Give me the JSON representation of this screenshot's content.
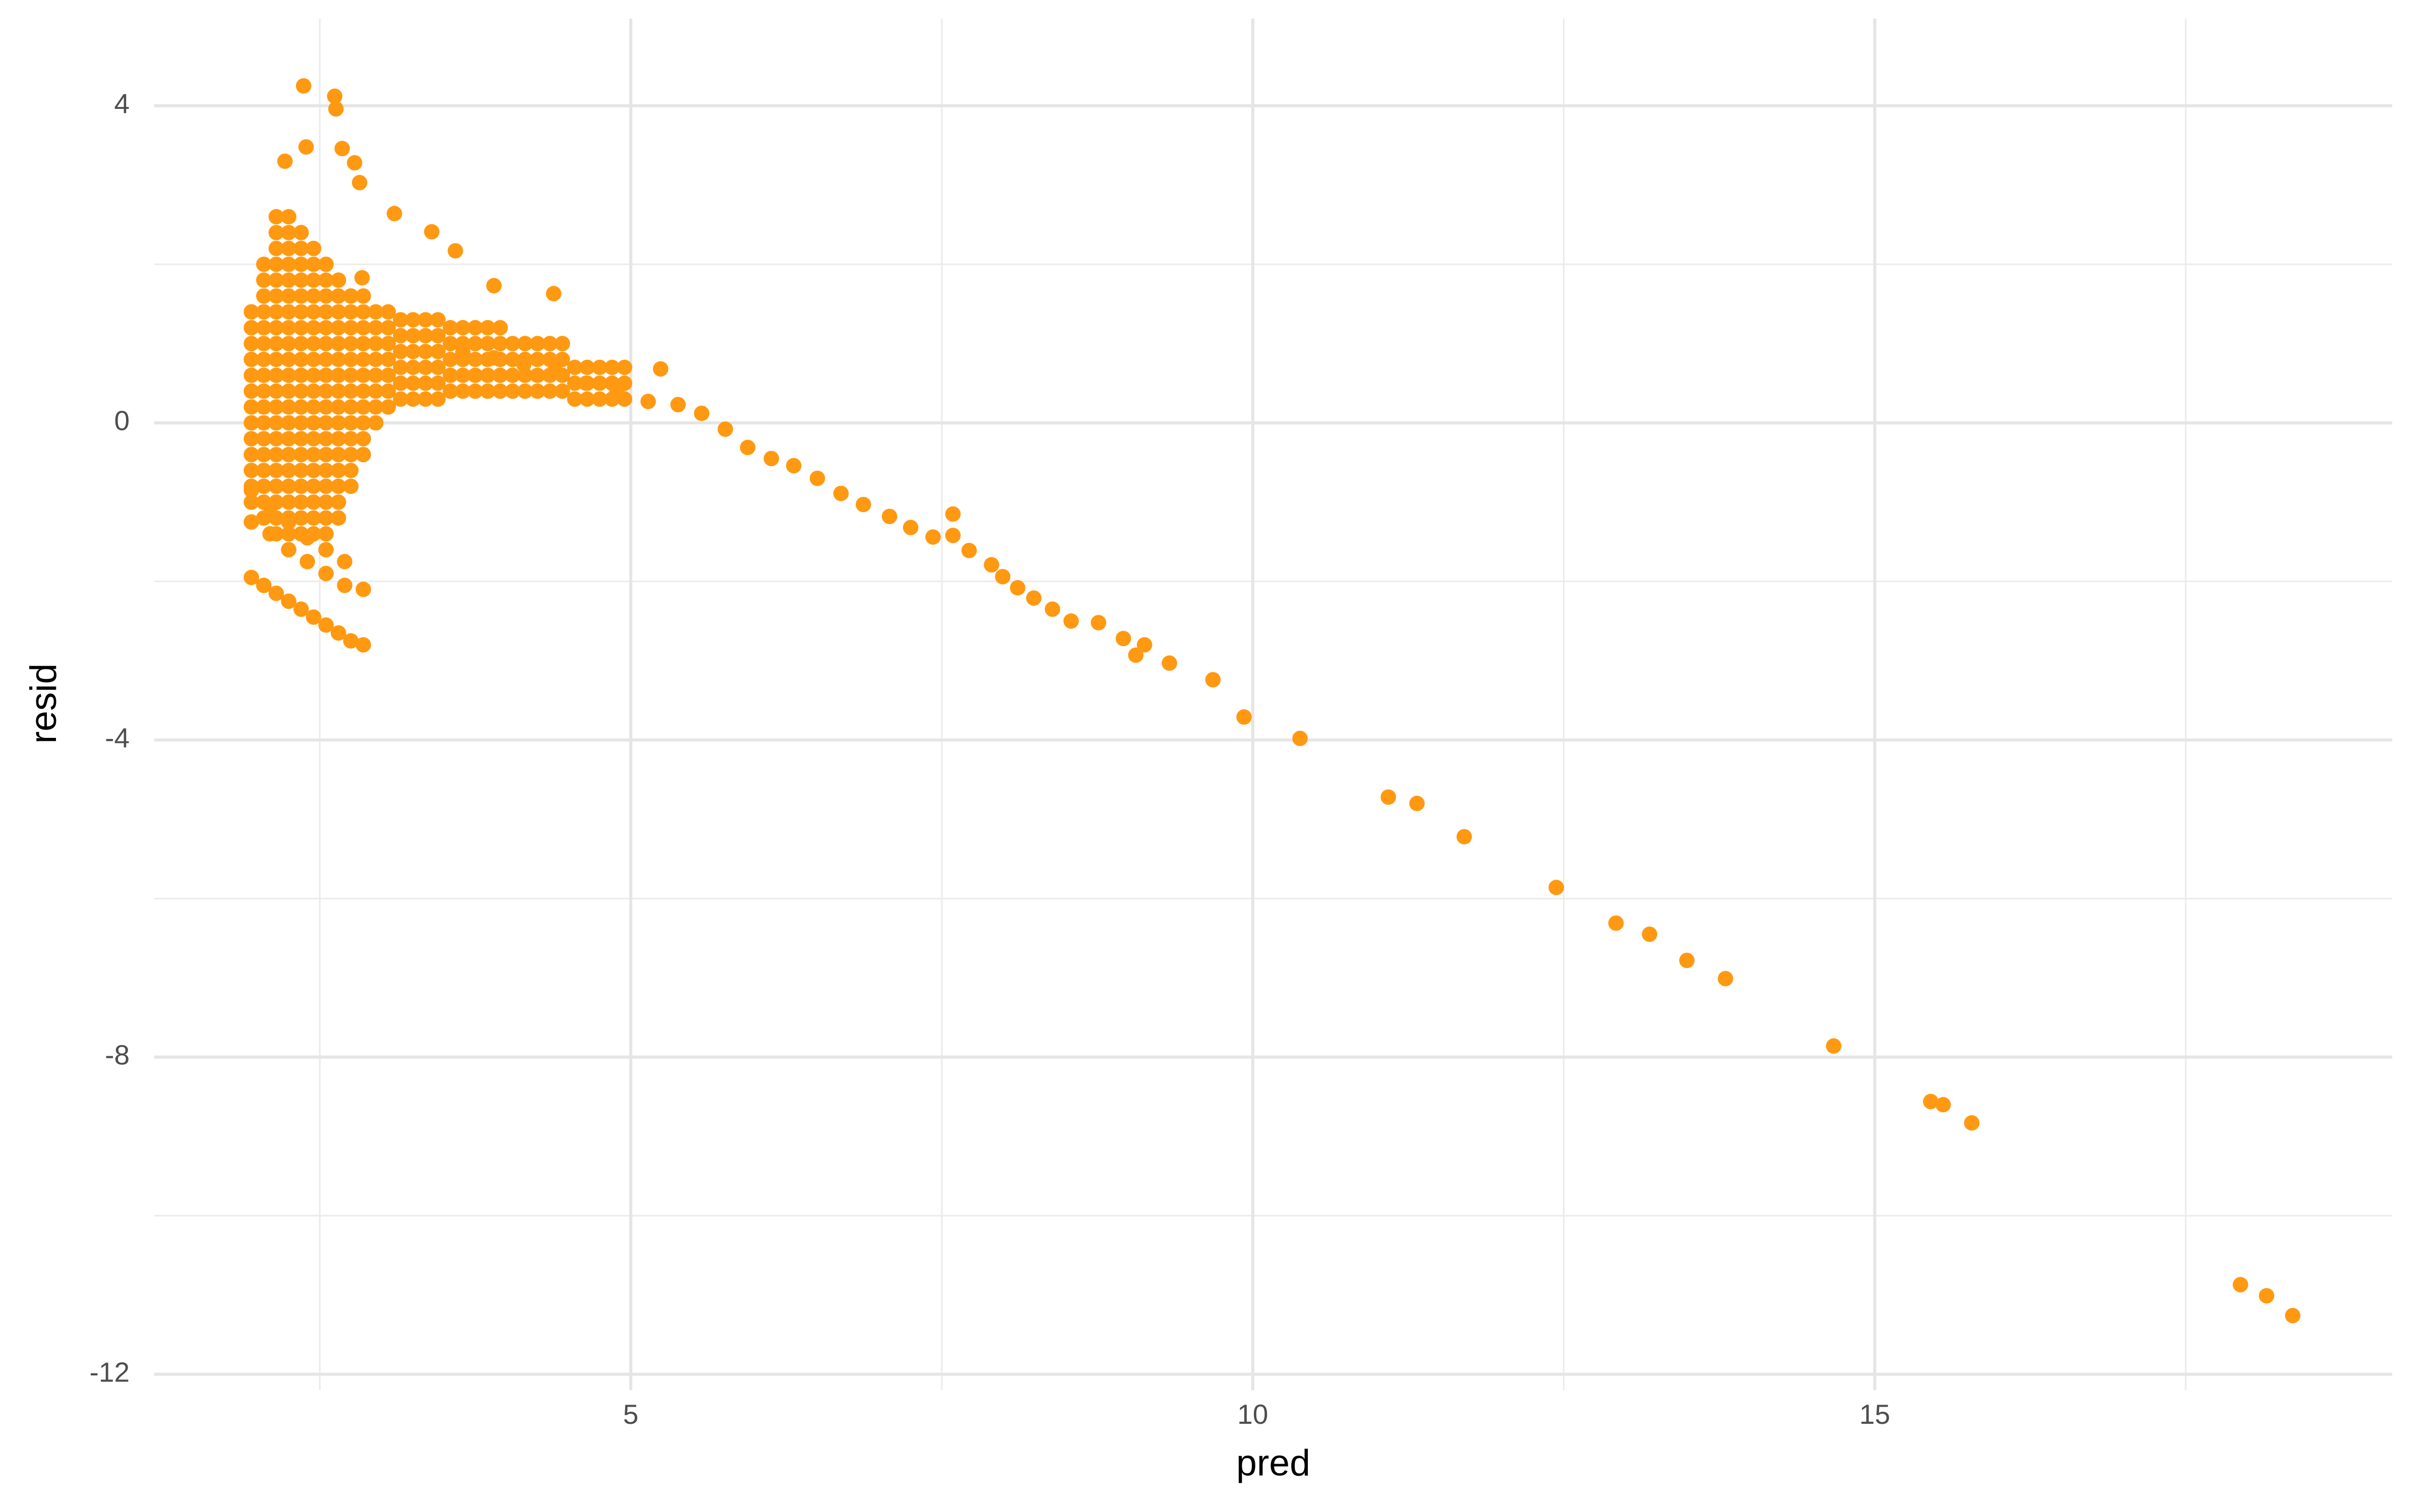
{
  "chart_data": {
    "type": "scatter",
    "x_label": "pred",
    "y_label": "resid",
    "color": "#ff9912",
    "xlim": [
      1.17,
      19.16
    ],
    "ylim": [
      -12.2,
      5.1
    ],
    "xticks": [
      5,
      10,
      15
    ],
    "yticks": [
      4,
      0,
      -4,
      -8,
      -12
    ],
    "x_minor_grid": [
      2.5,
      7.5,
      12.5,
      17.5
    ],
    "y_minor_grid": [
      2,
      -2,
      -6,
      -10
    ],
    "grid": true,
    "x": [
      1.95,
      1.95,
      1.95,
      1.95,
      1.95,
      1.95,
      1.95,
      1.95,
      1.95,
      1.95,
      1.95,
      1.95,
      1.95,
      2.05,
      2.05,
      2.05,
      2.05,
      2.05,
      2.05,
      2.05,
      2.05,
      2.05,
      2.05,
      2.05,
      2.05,
      2.05,
      2.05,
      2.05,
      2.05,
      2.05,
      2.15,
      2.15,
      2.15,
      2.15,
      2.15,
      2.15,
      2.15,
      2.15,
      2.15,
      2.15,
      2.15,
      2.15,
      2.15,
      2.15,
      2.15,
      2.15,
      2.15,
      2.15,
      2.15,
      2.15,
      2.15,
      2.25,
      2.25,
      2.25,
      2.25,
      2.25,
      2.25,
      2.25,
      2.25,
      2.25,
      2.25,
      2.25,
      2.25,
      2.25,
      2.25,
      2.25,
      2.25,
      2.25,
      2.25,
      2.25,
      2.25,
      2.25,
      2.35,
      2.35,
      2.35,
      2.35,
      2.35,
      2.35,
      2.35,
      2.35,
      2.35,
      2.35,
      2.35,
      2.35,
      2.35,
      2.35,
      2.35,
      2.35,
      2.35,
      2.35,
      2.35,
      2.35,
      2.45,
      2.45,
      2.45,
      2.45,
      2.45,
      2.45,
      2.45,
      2.45,
      2.45,
      2.45,
      2.45,
      2.45,
      2.45,
      2.45,
      2.45,
      2.45,
      2.45,
      2.45,
      2.45,
      2.55,
      2.55,
      2.55,
      2.55,
      2.55,
      2.55,
      2.55,
      2.55,
      2.55,
      2.55,
      2.55,
      2.55,
      2.55,
      2.55,
      2.55,
      2.55,
      2.55,
      2.55,
      2.65,
      2.65,
      2.65,
      2.65,
      2.65,
      2.65,
      2.65,
      2.65,
      2.65,
      2.65,
      2.65,
      2.65,
      2.65,
      2.65,
      2.65,
      2.65,
      2.75,
      2.75,
      2.75,
      2.75,
      2.75,
      2.75,
      2.75,
      2.75,
      2.75,
      2.75,
      2.75,
      2.75,
      2.75,
      2.85,
      2.85,
      2.85,
      2.85,
      2.85,
      2.85,
      2.85,
      2.85,
      2.85,
      2.85,
      2.85,
      2.95,
      2.95,
      2.95,
      2.95,
      2.95,
      2.95,
      2.95,
      2.95,
      3.05,
      3.05,
      3.05,
      3.05,
      3.05,
      3.05,
      3.05,
      3.15,
      3.15,
      3.15,
      3.15,
      3.15,
      3.15,
      3.25,
      3.25,
      3.25,
      3.25,
      3.25,
      3.25,
      3.35,
      3.35,
      3.35,
      3.35,
      3.35,
      3.35,
      3.45,
      3.45,
      3.45,
      3.45,
      3.45,
      3.45,
      3.55,
      3.55,
      3.55,
      3.55,
      3.55,
      3.65,
      3.65,
      3.65,
      3.65,
      3.65,
      3.75,
      3.75,
      3.75,
      3.75,
      3.75,
      3.85,
      3.85,
      3.85,
      3.85,
      3.85,
      3.95,
      3.95,
      3.95,
      3.95,
      3.95,
      4.05,
      4.05,
      4.05,
      4.05,
      4.15,
      4.15,
      4.15,
      4.15,
      4.25,
      4.25,
      4.25,
      4.25,
      4.35,
      4.35,
      4.35,
      4.35,
      4.45,
      4.45,
      4.45,
      4.45,
      4.55,
      4.55,
      4.55,
      4.65,
      4.65,
      4.65,
      4.75,
      4.75,
      4.75,
      4.85,
      4.85,
      4.85,
      4.95,
      4.95,
      4.95,
      1.95,
      2.1,
      2.25,
      2.4,
      2.55,
      2.7,
      1.95,
      2.1,
      2.25,
      2.4,
      2.55,
      2.7,
      2.85,
      1.95,
      2.05,
      2.15,
      2.25,
      2.35,
      2.45,
      2.55,
      2.65,
      2.75,
      2.85,
      2.37,
      2.62,
      2.63,
      2.39,
      2.68,
      2.78,
      2.22,
      2.82,
      2.84,
      3.1,
      3.4,
      3.59,
      3.9,
      4.38,
      3.65,
      3.9,
      4.14,
      4.39,
      4.64,
      4.89,
      5.14,
      5.24,
      5.38,
      5.57,
      5.76,
      5.94,
      6.13,
      6.31,
      6.5,
      6.69,
      6.87,
      7.08,
      7.25,
      7.43,
      7.59,
      7.59,
      7.72,
      7.9,
      7.99,
      8.11,
      8.24,
      8.39,
      8.54,
      8.76,
      8.96,
      9.06,
      9.13,
      9.33,
      9.68,
      9.93,
      10.38,
      11.09,
      11.32,
      11.7,
      12.44,
      12.92,
      13.19,
      13.49,
      13.8,
      14.67,
      15.45,
      15.55,
      15.78,
      17.94,
      18.15,
      18.36
    ],
    "values": [
      -1,
      -0.8,
      -0.6,
      -0.4,
      -0.2,
      0,
      0.2,
      0.4,
      0.6,
      0.8,
      1,
      1.2,
      1.4,
      -1.2,
      -1,
      -0.8,
      -0.6,
      -0.4,
      -0.2,
      0,
      0.2,
      0.4,
      0.6,
      0.8,
      1,
      1.2,
      1.4,
      1.6,
      1.8,
      2,
      -1.4,
      -1.2,
      -1,
      -0.8,
      -0.6,
      -0.4,
      -0.2,
      0,
      0.2,
      0.4,
      0.6,
      0.8,
      1,
      1.2,
      1.4,
      1.6,
      1.8,
      2,
      2.2,
      2.4,
      2.6,
      -1.4,
      -1.2,
      -1,
      -0.8,
      -0.6,
      -0.4,
      -0.2,
      0,
      0.2,
      0.4,
      0.6,
      0.8,
      1,
      1.2,
      1.4,
      1.6,
      1.8,
      2,
      2.2,
      2.4,
      2.6,
      -1.4,
      -1.2,
      -1,
      -0.8,
      -0.6,
      -0.4,
      -0.2,
      0,
      0.2,
      0.4,
      0.6,
      0.8,
      1,
      1.2,
      1.4,
      1.6,
      1.8,
      2,
      2.2,
      2.4,
      -1.4,
      -1.2,
      -1,
      -0.8,
      -0.6,
      -0.4,
      -0.2,
      0,
      0.2,
      0.4,
      0.6,
      0.8,
      1,
      1.2,
      1.4,
      1.6,
      1.8,
      2,
      2.2,
      -1.4,
      -1.2,
      -1,
      -0.8,
      -0.6,
      -0.4,
      -0.2,
      0,
      0.2,
      0.4,
      0.6,
      0.8,
      1,
      1.2,
      1.4,
      1.6,
      1.8,
      2,
      -1.2,
      -1,
      -0.8,
      -0.6,
      -0.4,
      -0.2,
      0,
      0.2,
      0.4,
      0.6,
      0.8,
      1,
      1.2,
      1.4,
      1.6,
      1.8,
      -0.8,
      -0.6,
      -0.4,
      -0.2,
      0,
      0.2,
      0.4,
      0.6,
      0.8,
      1,
      1.2,
      1.4,
      1.6,
      -0.4,
      -0.2,
      0,
      0.2,
      0.4,
      0.6,
      0.8,
      1,
      1.2,
      1.4,
      1.6,
      0,
      0.2,
      0.4,
      0.6,
      0.8,
      1,
      1.2,
      1.4,
      0.2,
      0.4,
      0.6,
      0.8,
      1,
      1.2,
      1.4,
      0.3,
      0.5,
      0.7,
      0.9,
      1.1,
      1.3,
      0.3,
      0.5,
      0.7,
      0.9,
      1.1,
      1.3,
      0.3,
      0.5,
      0.7,
      0.9,
      1.1,
      1.3,
      0.3,
      0.5,
      0.7,
      0.9,
      1.1,
      1.3,
      0.4,
      0.6,
      0.8,
      1,
      1.2,
      0.4,
      0.6,
      0.8,
      1,
      1.2,
      0.4,
      0.6,
      0.8,
      1,
      1.2,
      0.4,
      0.6,
      0.8,
      1,
      1.2,
      0.4,
      0.6,
      0.8,
      1,
      1.2,
      0.4,
      0.6,
      0.8,
      1,
      0.4,
      0.6,
      0.8,
      1,
      0.4,
      0.6,
      0.8,
      1,
      0.4,
      0.6,
      0.8,
      1,
      0.4,
      0.6,
      0.8,
      1,
      0.3,
      0.5,
      0.7,
      0.3,
      0.5,
      0.7,
      0.3,
      0.5,
      0.7,
      0.3,
      0.5,
      0.7,
      0.3,
      0.5,
      0.7,
      -0.85,
      -1.05,
      -1.25,
      -1.45,
      -1.6,
      -1.75,
      -1.25,
      -1.4,
      -1.6,
      -1.75,
      -1.9,
      -2.05,
      -2.1,
      -1.95,
      -2.05,
      -2.15,
      -2.25,
      -2.35,
      -2.45,
      -2.55,
      -2.65,
      -2.75,
      -2.8,
      4.25,
      4.12,
      3.96,
      3.48,
      3.46,
      3.28,
      3.3,
      3.03,
      1.83,
      2.64,
      2.41,
      2.17,
      1.73,
      1.63,
      0.89,
      0.82,
      0.74,
      0.66,
      0.5,
      0.39,
      0.27,
      0.68,
      0.23,
      0.12,
      -0.08,
      -0.31,
      -0.45,
      -0.54,
      -0.7,
      -0.89,
      -1.03,
      -1.18,
      -1.32,
      -1.44,
      -1.42,
      -1.15,
      -1.61,
      -1.79,
      -1.94,
      -2.08,
      -2.21,
      -2.35,
      -2.5,
      -2.52,
      -2.72,
      -2.93,
      -2.8,
      -3.03,
      -3.24,
      -3.71,
      -3.98,
      -4.72,
      -4.8,
      -5.22,
      -5.86,
      -6.31,
      -6.45,
      -6.78,
      -7.01,
      -7.86,
      -8.56,
      -8.6,
      -8.83,
      -10.87,
      -11.01,
      -11.26
    ]
  }
}
